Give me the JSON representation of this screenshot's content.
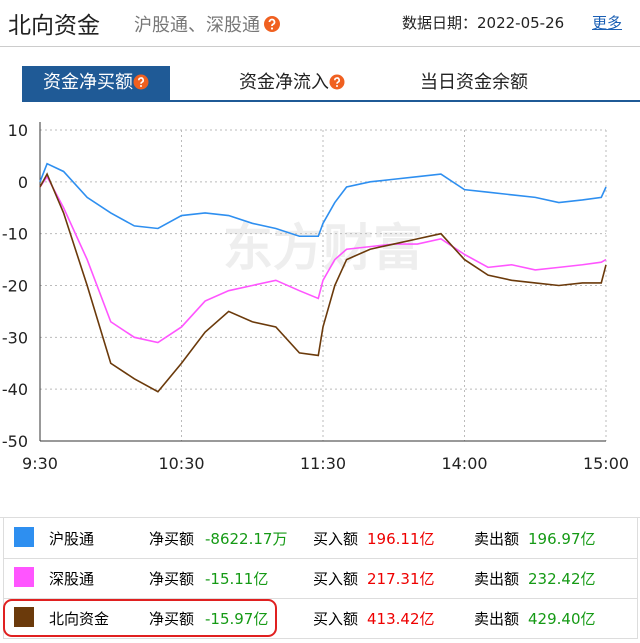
{
  "header": {
    "title": "北向资金",
    "subtitle": "沪股通、深股通",
    "date": "数据日期：2022-05-26",
    "more": "更多"
  },
  "tabs": [
    "资金净买额",
    "资金净流入",
    "当日资金余额"
  ],
  "chart_data": {
    "type": "line",
    "watermark": "东方财富",
    "x": [
      0,
      3,
      10,
      20,
      30,
      40,
      50,
      60,
      70,
      80,
      90,
      100,
      110,
      118,
      120,
      125,
      130,
      140,
      150,
      160,
      170,
      180,
      190,
      200,
      210,
      220,
      230,
      238,
      240
    ],
    "xlim": [
      0,
      240
    ],
    "xticks": [
      {
        "value": 0,
        "label": "9:30"
      },
      {
        "value": 60,
        "label": "10:30"
      },
      {
        "value": 120,
        "label": "11:30"
      },
      {
        "value": 180,
        "label": "14:00"
      },
      {
        "value": 240,
        "label": "15:00"
      }
    ],
    "ylim": [
      -50,
      10
    ],
    "yticks": [
      10,
      0,
      -10,
      -20,
      -30,
      -40,
      -50
    ],
    "grid": true,
    "series": [
      {
        "name": "沪股通",
        "color": "#2e8ff0",
        "values": [
          0,
          3.5,
          2,
          -3,
          -6,
          -8.5,
          -9,
          -6.5,
          -6,
          -6.5,
          -8,
          -9,
          -10.5,
          -10.5,
          -8,
          -4,
          -1,
          0,
          0.5,
          1,
          1.5,
          -1.5,
          -2,
          -2.5,
          -3,
          -4,
          -3.5,
          -3,
          -1
        ]
      },
      {
        "name": "深股通",
        "color": "#ff55ff",
        "values": [
          -1,
          1,
          -5,
          -15,
          -27,
          -30,
          -31,
          -28,
          -23,
          -21,
          -20,
          -19,
          -21,
          -22.5,
          -19,
          -15,
          -13,
          -12.5,
          -12,
          -12,
          -11,
          -14,
          -16.5,
          -16,
          -17,
          -16.5,
          -16,
          -15.5,
          -15
        ]
      },
      {
        "name": "北向资金",
        "color": "#6b3a0b",
        "values": [
          -1,
          1.5,
          -6,
          -20,
          -35,
          -38,
          -40.5,
          -35,
          -29,
          -25,
          -27,
          -28,
          -33,
          -33.5,
          -28,
          -20,
          -15,
          -13,
          -12,
          -11,
          -10,
          -15,
          -18,
          -19,
          -19.5,
          -20,
          -19.5,
          -19.5,
          -16
        ]
      }
    ]
  },
  "table": {
    "rows": [
      {
        "net_label": "净买额",
        "net": "-8622.17万",
        "buy_label": "买入额",
        "buy": "196.11亿",
        "sell_label": "卖出额",
        "sell": "196.97亿"
      },
      {
        "net_label": "净买额",
        "net": "-15.11亿",
        "buy_label": "买入额",
        "buy": "217.31亿",
        "sell_label": "卖出额",
        "sell": "232.42亿"
      },
      {
        "net_label": "净买额",
        "net": "-15.97亿",
        "buy_label": "买入额",
        "buy": "413.42亿",
        "sell_label": "卖出额",
        "sell": "429.40亿"
      }
    ]
  }
}
